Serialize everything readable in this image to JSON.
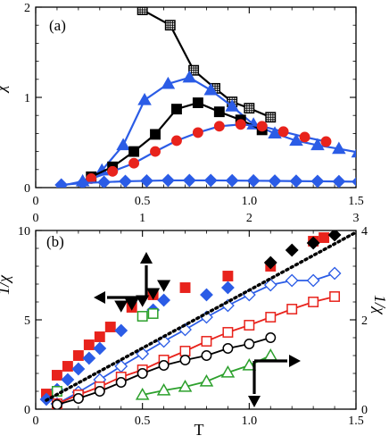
{
  "chart_data": [
    {
      "type": "line",
      "panel_label": "(a)",
      "ylabel": "χ",
      "xlabel": "",
      "xlim": [
        0,
        1.5
      ],
      "ylim": [
        0,
        2
      ],
      "x_ticks": [
        "0",
        "0.5",
        "1.0",
        "1.5"
      ],
      "x_ticks_top_axis": [
        "0",
        "1",
        "2",
        "3"
      ],
      "y_ticks": [
        "0",
        "1",
        "2"
      ],
      "series": [
        {
          "marker": "square-crosshatch",
          "color": "#000000",
          "line": "#000000",
          "points": [
            [
              0.42,
              2.1
            ],
            [
              0.5,
              1.97
            ],
            [
              0.63,
              1.8
            ],
            [
              0.74,
              1.3
            ],
            [
              0.84,
              1.1
            ],
            [
              0.92,
              0.95
            ],
            [
              1.0,
              0.88
            ],
            [
              1.1,
              0.78
            ]
          ]
        },
        {
          "marker": "triangle-up",
          "color": "#2b5ce6",
          "line": "#2b5ce6",
          "points": [
            [
              0.12,
              0.02
            ],
            [
              0.22,
              0.07
            ],
            [
              0.31,
              0.19
            ],
            [
              0.41,
              0.47
            ],
            [
              0.51,
              0.97
            ],
            [
              0.62,
              1.15
            ],
            [
              0.72,
              1.22
            ],
            [
              0.82,
              1.08
            ],
            [
              0.92,
              0.9
            ],
            [
              1.02,
              0.7
            ],
            [
              1.12,
              0.6
            ],
            [
              1.22,
              0.52
            ],
            [
              1.32,
              0.47
            ],
            [
              1.42,
              0.43
            ],
            [
              1.51,
              0.39
            ]
          ]
        },
        {
          "marker": "square",
          "color": "#000000",
          "line": "#000000",
          "points": [
            [
              0.26,
              0.12
            ],
            [
              0.36,
              0.23
            ],
            [
              0.46,
              0.4
            ],
            [
              0.56,
              0.59
            ],
            [
              0.66,
              0.87
            ],
            [
              0.76,
              0.94
            ],
            [
              0.86,
              0.84
            ],
            [
              0.96,
              0.75
            ],
            [
              1.06,
              0.64
            ]
          ]
        },
        {
          "marker": "circle",
          "color": "#e8231c",
          "line": "#2b5ce6",
          "points": [
            [
              0.26,
              0.1
            ],
            [
              0.36,
              0.18
            ],
            [
              0.46,
              0.27
            ],
            [
              0.56,
              0.4
            ],
            [
              0.66,
              0.52
            ],
            [
              0.76,
              0.61
            ],
            [
              0.86,
              0.68
            ],
            [
              0.96,
              0.7
            ],
            [
              1.06,
              0.68
            ],
            [
              1.16,
              0.62
            ],
            [
              1.26,
              0.56
            ],
            [
              1.36,
              0.51
            ]
          ]
        },
        {
          "marker": "diamond",
          "color": "#2b5ce6",
          "line": "#2b5ce6",
          "points": [
            [
              0.12,
              0.03
            ],
            [
              0.22,
              0.05
            ],
            [
              0.32,
              0.06
            ],
            [
              0.42,
              0.07
            ],
            [
              0.52,
              0.075
            ],
            [
              0.62,
              0.08
            ],
            [
              0.72,
              0.08
            ],
            [
              0.82,
              0.08
            ],
            [
              0.92,
              0.078
            ],
            [
              1.02,
              0.076
            ],
            [
              1.12,
              0.074
            ],
            [
              1.22,
              0.072
            ],
            [
              1.32,
              0.07
            ],
            [
              1.42,
              0.068
            ],
            [
              1.51,
              0.065
            ]
          ]
        }
      ]
    },
    {
      "type": "scatter",
      "panel_label": "(b)",
      "xlabel": "T",
      "ylabel": "1/χ",
      "ylabel_right": "1/χ",
      "xlim": [
        0,
        1.5
      ],
      "ylim": [
        0,
        10
      ],
      "ylim_right": [
        0,
        4
      ],
      "x_ticks": [
        "0",
        "0.5",
        "1.0",
        "1.5"
      ],
      "y_ticks": [
        "0",
        "5",
        "10"
      ],
      "y_ticks_right": [
        "0",
        "2",
        "4"
      ],
      "series": [
        {
          "marker": "diamond-open",
          "color": "#2b5ce6",
          "line": "#2b5ce6",
          "points": [
            [
              0.1,
              0.3
            ],
            [
              0.2,
              0.95
            ],
            [
              0.3,
              1.65
            ],
            [
              0.4,
              2.4
            ],
            [
              0.5,
              3.1
            ],
            [
              0.6,
              3.8
            ],
            [
              0.7,
              4.45
            ],
            [
              0.8,
              5.15
            ],
            [
              0.9,
              5.8
            ],
            [
              1.0,
              6.4
            ],
            [
              1.1,
              6.95
            ],
            [
              1.2,
              7.2
            ],
            [
              1.3,
              7.2
            ],
            [
              1.4,
              7.6
            ]
          ]
        },
        {
          "marker": "square-open",
          "color": "#e8231c",
          "line": "#e8231c",
          "points": [
            [
              0.1,
              0.3
            ],
            [
              0.2,
              0.8
            ],
            [
              0.3,
              1.25
            ],
            [
              0.4,
              1.8
            ],
            [
              0.5,
              2.2
            ],
            [
              0.6,
              2.75
            ],
            [
              0.7,
              3.25
            ],
            [
              0.8,
              3.8
            ],
            [
              0.9,
              4.3
            ],
            [
              1.0,
              4.7
            ],
            [
              1.1,
              5.15
            ],
            [
              1.2,
              5.6
            ],
            [
              1.3,
              6.0
            ],
            [
              1.4,
              6.3
            ]
          ]
        },
        {
          "marker": "circle-open",
          "color": "#000000",
          "line": "#000000",
          "points": [
            [
              0.1,
              0.25
            ],
            [
              0.2,
              0.6
            ],
            [
              0.3,
              1.0
            ],
            [
              0.4,
              1.5
            ],
            [
              0.5,
              2.0
            ],
            [
              0.6,
              2.45
            ],
            [
              0.7,
              2.75
            ],
            [
              0.8,
              3.0
            ],
            [
              0.9,
              3.4
            ],
            [
              1.0,
              3.65
            ],
            [
              1.1,
              4.0
            ]
          ]
        },
        {
          "marker": "triangle-open",
          "color": "#2ca02c",
          "line": "#2ca02c",
          "points": [
            [
              0.5,
              0.8
            ],
            [
              0.6,
              1.05
            ],
            [
              0.7,
              1.25
            ],
            [
              0.8,
              1.55
            ],
            [
              0.9,
              2.05
            ],
            [
              1.0,
              2.45
            ],
            [
              1.1,
              3.0
            ]
          ]
        },
        {
          "marker": "square",
          "color": "#e8231c",
          "points": [
            [
              0.05,
              0.85
            ],
            [
              0.1,
              1.9
            ],
            [
              0.15,
              2.4
            ],
            [
              0.2,
              3.0
            ],
            [
              0.25,
              3.6
            ],
            [
              0.3,
              4.05
            ],
            [
              0.35,
              4.6
            ],
            [
              0.45,
              5.7
            ],
            [
              0.55,
              6.4
            ],
            [
              0.7,
              6.8
            ],
            [
              0.9,
              7.45
            ],
            [
              1.1,
              8.0
            ],
            [
              1.3,
              9.4
            ],
            [
              1.35,
              9.6
            ]
          ]
        },
        {
          "marker": "diamond",
          "color": "#2b5ce6",
          "points": [
            [
              0.05,
              0.55
            ],
            [
              0.1,
              1.1
            ],
            [
              0.15,
              1.65
            ],
            [
              0.2,
              2.25
            ],
            [
              0.25,
              2.85
            ],
            [
              0.3,
              3.4
            ],
            [
              0.4,
              4.4
            ],
            [
              0.55,
              5.55
            ],
            [
              0.6,
              6.1
            ],
            [
              0.8,
              6.4
            ],
            [
              0.9,
              6.8
            ]
          ]
        },
        {
          "marker": "triangle-down",
          "color": "#000000",
          "points": [
            [
              0.4,
              5.8
            ],
            [
              0.45,
              5.9
            ],
            [
              0.5,
              6.1
            ],
            [
              0.55,
              6.5
            ],
            [
              0.6,
              6.95
            ]
          ]
        },
        {
          "marker": "diamond",
          "color": "#000000",
          "points": [
            [
              1.1,
              8.2
            ],
            [
              1.2,
              8.9
            ],
            [
              1.3,
              9.3
            ],
            [
              1.4,
              9.75
            ]
          ]
        },
        {
          "marker": "square-open",
          "color": "#2ca02c",
          "points": [
            [
              0.1,
              1.0
            ],
            [
              0.5,
              5.2
            ],
            [
              0.55,
              5.35
            ]
          ]
        },
        {
          "marker": "dotted-line",
          "color": "#000000",
          "points": [
            [
              0.05,
              0.5
            ],
            [
              1.5,
              9.9
            ]
          ]
        }
      ]
    }
  ],
  "arrows": [
    {
      "color": "#000000",
      "hint": "up-left"
    },
    {
      "color": "#000000",
      "hint": "right-down"
    }
  ]
}
